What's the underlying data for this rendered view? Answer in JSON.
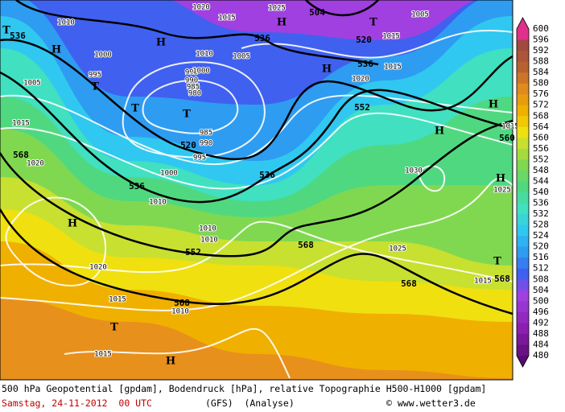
{
  "map": {
    "labels": [
      "536",
      "H",
      "T",
      "1010",
      "1000",
      "995",
      "1005",
      "T",
      "T",
      "995",
      "990",
      "985",
      "980",
      "T",
      "985",
      "520",
      "990",
      "995",
      "1000",
      "536",
      "1010",
      "536",
      "568",
      "1020",
      "1015",
      "H",
      "1020",
      "1010",
      "552",
      "1010",
      "568",
      "1025",
      "568",
      "1015",
      "568",
      "1010",
      "T",
      "1015",
      "H",
      "1030",
      "1025",
      "H",
      "H",
      "H",
      "552",
      "536",
      "520",
      "504",
      "1015",
      "H",
      "1020",
      "536",
      "1005",
      "1010",
      "1000",
      "H",
      "1025",
      "1015",
      "1020",
      "H",
      "T",
      "1015",
      "1005",
      "1015",
      "568",
      "T",
      "560",
      "1015"
    ]
  },
  "colorbar": {
    "ticks": [
      600,
      596,
      592,
      588,
      584,
      580,
      576,
      572,
      568,
      564,
      560,
      556,
      552,
      548,
      544,
      540,
      536,
      532,
      528,
      524,
      520,
      516,
      512,
      508,
      504,
      500,
      496,
      492,
      488,
      484,
      480
    ]
  },
  "caption": {
    "line1": "500 hPa Geopotential [gpdam], Bodendruck [hPa], relative Topographie H500-H1000 [gpdam]",
    "date": "Samstag, 24-11-2012  00 UTC",
    "model": "(GFS)  (Analyse)",
    "copyright": "© www.wetter3.de"
  }
}
